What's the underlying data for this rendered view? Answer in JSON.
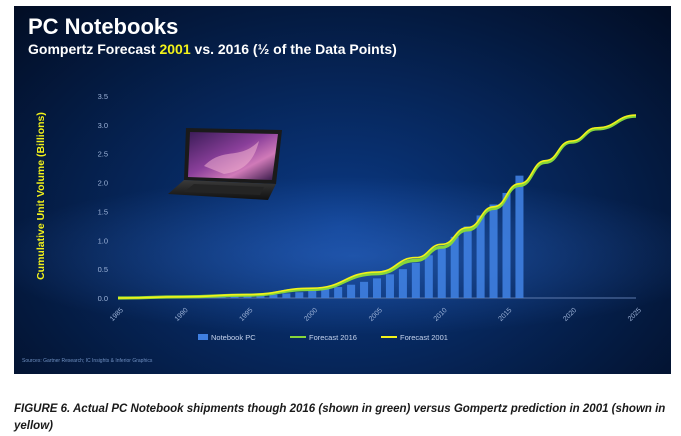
{
  "slide": {
    "title": "PC Notebooks",
    "subtitle_pre": "Gompertz Forecast ",
    "subtitle_highlight": "2001",
    "subtitle_post": " vs. 2016 (½ of the Data Points)",
    "source_note": "Sources: Gartner Research; IC Insights & Inferior Graphics"
  },
  "caption": "FIGURE 6. Actual PC Notebook shipments though 2016 (shown in green) versus Gompertz prediction in 2001 (shown in yellow)",
  "colors": {
    "bar": "#3f7fe0",
    "forecast_2016": "#86d63a",
    "forecast_2001": "#f2f21a",
    "axis_text": "#9db3d8"
  },
  "chart_data": {
    "type": "bar+line",
    "ylabel": "Cumulative Unit Volume (Billions)",
    "ylim": [
      0,
      3.5
    ],
    "yticks": [
      "0.0",
      "0.5",
      "1.0",
      "1.5",
      "2.0",
      "2.5",
      "3.0",
      "3.5"
    ],
    "xlim": [
      1985,
      2025
    ],
    "xticks": [
      "1985",
      "1990",
      "1995",
      "2000",
      "2005",
      "2010",
      "2015",
      "2020",
      "2025"
    ],
    "legend_position": "bottom",
    "series": [
      {
        "name": "Notebook PC",
        "kind": "bar",
        "x": [
          1985,
          1986,
          1987,
          1988,
          1989,
          1990,
          1991,
          1992,
          1993,
          1994,
          1995,
          1996,
          1997,
          1998,
          1999,
          2000,
          2001,
          2002,
          2003,
          2004,
          2005,
          2006,
          2007,
          2008,
          2009,
          2010,
          2011,
          2012,
          2013,
          2014,
          2015,
          2016
        ],
        "values": [
          0.0,
          0.0,
          0.0,
          0.0,
          0.0,
          0.0,
          0.01,
          0.01,
          0.02,
          0.03,
          0.04,
          0.05,
          0.06,
          0.08,
          0.1,
          0.13,
          0.16,
          0.19,
          0.23,
          0.28,
          0.34,
          0.41,
          0.5,
          0.61,
          0.74,
          0.89,
          1.06,
          1.24,
          1.43,
          1.62,
          1.82,
          2.12
        ]
      },
      {
        "name": "Forecast 2016",
        "kind": "line",
        "x": [
          1985,
          1990,
          1995,
          2000,
          2005,
          2008,
          2010,
          2012,
          2014,
          2016,
          2018,
          2020,
          2022,
          2025
        ],
        "values": [
          0.0,
          0.02,
          0.05,
          0.15,
          0.42,
          0.65,
          0.88,
          1.18,
          1.55,
          1.95,
          2.35,
          2.7,
          2.93,
          3.15
        ]
      },
      {
        "name": "Forecast 2001",
        "kind": "line",
        "x": [
          1985,
          1990,
          1995,
          2000,
          2005,
          2008,
          2010,
          2012,
          2014,
          2016,
          2018,
          2020,
          2022,
          2025
        ],
        "values": [
          0.0,
          0.02,
          0.06,
          0.17,
          0.45,
          0.7,
          0.93,
          1.22,
          1.58,
          1.98,
          2.38,
          2.72,
          2.95,
          3.17
        ]
      }
    ]
  }
}
